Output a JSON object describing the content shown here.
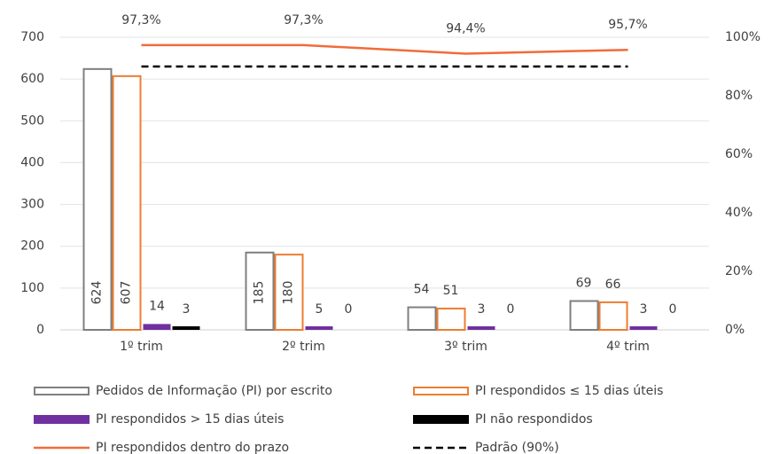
{
  "chart_data": {
    "type": "bar",
    "categories": [
      "1º trim",
      "2º trim",
      "3º trim",
      "4º trim"
    ],
    "ylim": [
      0,
      700
    ],
    "yticks": [
      0,
      100,
      200,
      300,
      400,
      500,
      600,
      700
    ],
    "y2lim": [
      0,
      100
    ],
    "y2ticks": [
      {
        "value": 0,
        "label": "0%"
      },
      {
        "value": 20,
        "label": "20%"
      },
      {
        "value": 40,
        "label": "40%"
      },
      {
        "value": 60,
        "label": "60%"
      },
      {
        "value": 80,
        "label": "80%"
      },
      {
        "value": 100,
        "label": "100%"
      }
    ],
    "grid": true,
    "series": [
      {
        "name": "Pedidos de Informação (PI) por escrito",
        "type": "bar",
        "outline": true,
        "color": "#7f7f7f",
        "values": [
          624,
          185,
          54,
          69
        ]
      },
      {
        "name": "PI respondidos ≤ 15 dias úteis",
        "type": "bar",
        "outline": true,
        "color": "#ed7d31",
        "values": [
          607,
          180,
          51,
          66
        ]
      },
      {
        "name": "PI respondidos > 15 dias úteis",
        "type": "bar",
        "outline": false,
        "color": "#7030a0",
        "values": [
          14,
          5,
          3,
          3
        ]
      },
      {
        "name": "PI não respondidos",
        "type": "bar",
        "outline": false,
        "color": "#000000",
        "values": [
          3,
          0,
          0,
          0
        ]
      },
      {
        "name": "PI respondidos dentro do prazo",
        "type": "line",
        "axis": "y2",
        "dashed": false,
        "color": "#f26b3a",
        "values": [
          97.3,
          97.3,
          94.4,
          95.7
        ],
        "value_labels": [
          "97,3%",
          "97,3%",
          "94,4%",
          "95,7%"
        ]
      },
      {
        "name": "Padrão (90%)",
        "type": "line",
        "axis": "y2",
        "dashed": true,
        "color": "#000000",
        "values": [
          90,
          90,
          90,
          90
        ]
      }
    ]
  }
}
